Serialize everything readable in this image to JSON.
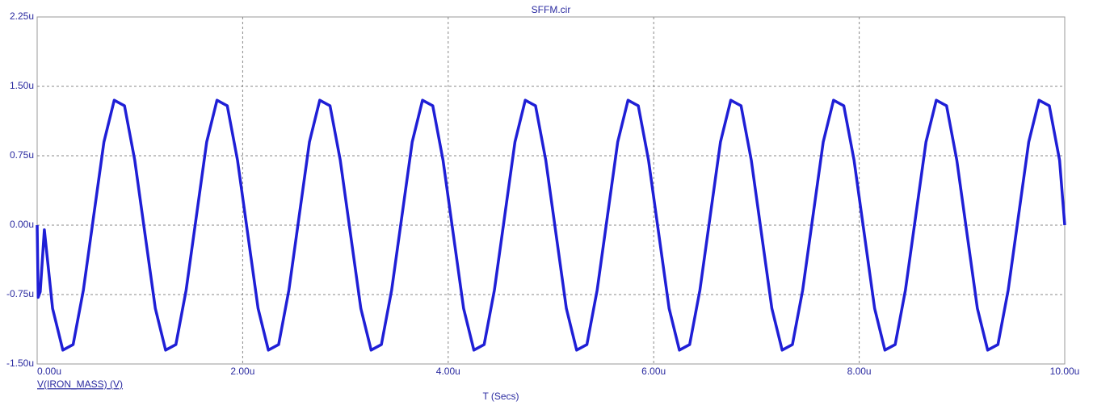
{
  "chart_data": {
    "type": "line",
    "title": "SFFM.cir",
    "x_label": "T (Secs)",
    "x": [
      0,
      0.01,
      0.03,
      0.07,
      0.15,
      0.25,
      0.35,
      0.45,
      0.55,
      0.65,
      0.75,
      0.85,
      0.95,
      1.05,
      1.15,
      1.25,
      1.35,
      1.45,
      1.55,
      1.65,
      1.75,
      1.85,
      1.95,
      2.05,
      2.15,
      2.25,
      2.35,
      2.45,
      2.55,
      2.65,
      2.75,
      2.85,
      2.95,
      3.05,
      3.15,
      3.25,
      3.35,
      3.45,
      3.55,
      3.65,
      3.75,
      3.85,
      3.95,
      4.05,
      4.15,
      4.25,
      4.35,
      4.45,
      4.55,
      4.65,
      4.75,
      4.85,
      4.95,
      5.05,
      5.15,
      5.25,
      5.35,
      5.45,
      5.55,
      5.65,
      5.75,
      5.85,
      5.95,
      6.05,
      6.15,
      6.25,
      6.35,
      6.45,
      6.55,
      6.65,
      6.75,
      6.85,
      6.95,
      7.05,
      7.15,
      7.25,
      7.35,
      7.45,
      7.55,
      7.65,
      7.75,
      7.85,
      7.95,
      8.05,
      8.15,
      8.25,
      8.35,
      8.45,
      8.55,
      8.65,
      8.75,
      8.85,
      8.95,
      9.05,
      9.15,
      9.25,
      9.35,
      9.45,
      9.55,
      9.65,
      9.75,
      9.85,
      9.95,
      10
    ],
    "series": [
      {
        "name": "V(IRON_MASS) (V)",
        "color": "#1f1fd6",
        "values": [
          0,
          -0.78,
          -0.72,
          -0.05,
          -0.9,
          -1.35,
          -1.29,
          -0.7,
          0.1,
          0.9,
          1.35,
          1.29,
          0.7,
          -0.1,
          -0.9,
          -1.35,
          -1.29,
          -0.7,
          0.1,
          0.9,
          1.35,
          1.29,
          0.7,
          -0.1,
          -0.9,
          -1.35,
          -1.29,
          -0.7,
          0.1,
          0.9,
          1.35,
          1.29,
          0.7,
          -0.1,
          -0.9,
          -1.35,
          -1.29,
          -0.7,
          0.1,
          0.9,
          1.35,
          1.29,
          0.7,
          -0.1,
          -0.9,
          -1.35,
          -1.29,
          -0.7,
          0.1,
          0.9,
          1.35,
          1.29,
          0.7,
          -0.1,
          -0.9,
          -1.35,
          -1.29,
          -0.7,
          0.1,
          0.9,
          1.35,
          1.29,
          0.7,
          -0.1,
          -0.9,
          -1.35,
          -1.29,
          -0.7,
          0.1,
          0.9,
          1.35,
          1.29,
          0.7,
          -0.1,
          -0.9,
          -1.35,
          -1.29,
          -0.7,
          0.1,
          0.9,
          1.35,
          1.29,
          0.7,
          -0.1,
          -0.9,
          -1.35,
          -1.29,
          -0.7,
          0.1,
          0.9,
          1.35,
          1.29,
          0.7,
          -0.1,
          -0.9,
          -1.35,
          -1.29,
          -0.7,
          0.1,
          0.9,
          1.35,
          1.29,
          0.7,
          0
        ]
      }
    ],
    "xlim": [
      0,
      10
    ],
    "xticks": [
      {
        "value": 0,
        "label": "0.00u"
      },
      {
        "value": 2,
        "label": "2.00u"
      },
      {
        "value": 4,
        "label": "4.00u"
      },
      {
        "value": 6,
        "label": "6.00u"
      },
      {
        "value": 8,
        "label": "8.00u"
      },
      {
        "value": 10,
        "label": "10.00u"
      }
    ],
    "ylim": [
      -1.5,
      2.25
    ],
    "yticks": [
      {
        "value": -1.5,
        "label": "-1.50u"
      },
      {
        "value": -0.75,
        "label": "-0.75u"
      },
      {
        "value": 0,
        "label": "0.00u"
      },
      {
        "value": 0.75,
        "label": "0.75u"
      },
      {
        "value": 1.5,
        "label": "1.50u"
      },
      {
        "value": 2.25,
        "label": "2.25u"
      }
    ],
    "grid": true
  }
}
